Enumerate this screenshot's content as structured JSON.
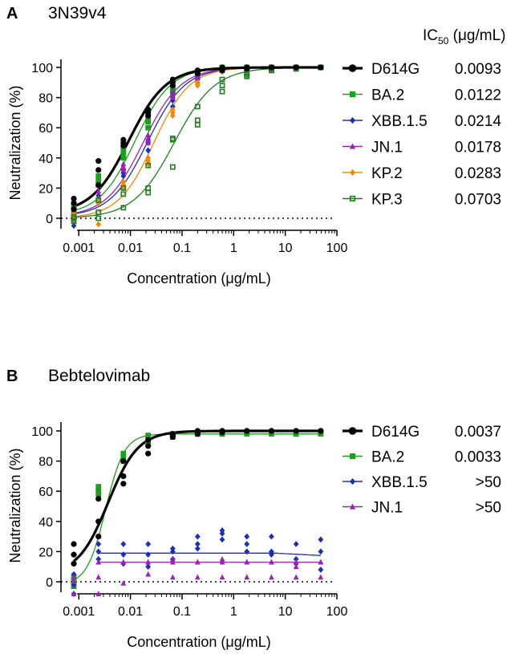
{
  "panels": [
    {
      "letter": "A",
      "title": "3N39v4",
      "ic50_header": "IC",
      "ic50_sub": "50",
      "ic50_unit": " (μg/mL)",
      "chart_data": {
        "type": "scatter",
        "title": "3N39v4",
        "xlabel": "Concentration (μg/mL)",
        "ylabel": "Neutralization (%)",
        "xscale": "log",
        "xlim": [
          0.0006,
          100
        ],
        "ylim": [
          -7,
          110
        ],
        "xticks": [
          0.001,
          0.01,
          0.1,
          1,
          10,
          100
        ],
        "xtick_labels": [
          "0.001",
          "0.01",
          "0.1",
          "1",
          "10",
          "100"
        ],
        "yticks": [
          0,
          20,
          40,
          60,
          80,
          100
        ],
        "ytick_labels": [
          "0",
          "20",
          "40",
          "60",
          "80",
          "100"
        ],
        "x": [
          0.0008,
          0.0024,
          0.0073,
          0.022,
          0.066,
          0.2,
          0.6,
          1.8,
          5.4,
          16.2,
          48.6
        ],
        "series": [
          {
            "name": "D614G",
            "ic50": "0.0093",
            "color": "#000000",
            "marker": "circle",
            "thick": true,
            "ec50": 0.0093,
            "hill": 1.2,
            "top": 100,
            "bottom": 3,
            "points": [
              [
                10,
                13,
                6
              ],
              [
                22,
                32,
                38
              ],
              [
                48,
                52,
                50
              ],
              [
                70,
                72,
                68
              ],
              [
                90,
                88,
                92
              ],
              [
                97,
                96,
                98
              ],
              [
                99,
                100,
                98
              ],
              [
                100,
                100,
                99
              ],
              [
                100,
                100,
                100
              ],
              [
                100,
                100,
                100
              ],
              [
                100,
                100,
                100
              ]
            ]
          },
          {
            "name": "BA.2",
            "ic50": "0.0122",
            "color": "#1aa01a",
            "marker": "square",
            "thick": false,
            "ec50": 0.0122,
            "hill": 1.25,
            "top": 100,
            "bottom": 2,
            "points": [
              [
                8,
                3,
                0
              ],
              [
                25,
                28,
                22
              ],
              [
                40,
                45,
                42
              ],
              [
                66,
                64,
                60
              ],
              [
                83,
                86,
                85
              ],
              [
                96,
                97,
                95
              ],
              [
                99,
                98,
                100
              ],
              [
                100,
                99,
                100
              ],
              [
                100,
                100,
                100
              ],
              [
                100,
                100,
                100
              ],
              [
                100,
                100,
                100
              ]
            ]
          },
          {
            "name": "XBB.1.5",
            "ic50": "0.0214",
            "color": "#1c2fb8",
            "marker": "diamond",
            "thick": false,
            "ec50": 0.0214,
            "hill": 1.2,
            "top": 100,
            "bottom": 1,
            "points": [
              [
                -5,
                2,
                5
              ],
              [
                12,
                13,
                15
              ],
              [
                28,
                32,
                30
              ],
              [
                45,
                50,
                52
              ],
              [
                78,
                74,
                80
              ],
              [
                92,
                93,
                90
              ],
              [
                98,
                99,
                97
              ],
              [
                100,
                99,
                100
              ],
              [
                100,
                100,
                100
              ],
              [
                100,
                100,
                100
              ],
              [
                100,
                100,
                100
              ]
            ]
          },
          {
            "name": "JN.1",
            "ic50": "0.0178",
            "color": "#9a22b5",
            "marker": "triangle",
            "thick": false,
            "ec50": 0.0178,
            "hill": 1.2,
            "top": 100,
            "bottom": 1,
            "points": [
              [
                0,
                -2,
                3
              ],
              [
                14,
                12,
                18
              ],
              [
                32,
                36,
                34
              ],
              [
                52,
                55,
                50
              ],
              [
                82,
                80,
                84
              ],
              [
                94,
                95,
                93
              ],
              [
                99,
                98,
                100
              ],
              [
                100,
                100,
                99
              ],
              [
                100,
                100,
                100
              ],
              [
                100,
                100,
                100
              ],
              [
                100,
                100,
                100
              ]
            ]
          },
          {
            "name": "KP.2",
            "ic50": "0.0283",
            "color": "#f0880a",
            "marker": "diamond",
            "thick": false,
            "ec50": 0.0283,
            "hill": 1.25,
            "top": 100,
            "bottom": 0,
            "points": [
              [
                -1,
                2,
                3
              ],
              [
                -4,
                12,
                10
              ],
              [
                24,
                22,
                20
              ],
              [
                38,
                40,
                36
              ],
              [
                70,
                68,
                72
              ],
              [
                88,
                90,
                89
              ],
              [
                98,
                97,
                99
              ],
              [
                100,
                99,
                100
              ],
              [
                100,
                100,
                100
              ],
              [
                100,
                100,
                100
              ],
              [
                100,
                100,
                100
              ]
            ]
          },
          {
            "name": "KP.3",
            "ic50": "0.0703",
            "color": "#1e7f1e",
            "marker": "square-open",
            "thick": false,
            "ec50": 0.0703,
            "hill": 1.1,
            "top": 100,
            "bottom": 0,
            "points": [
              [
                -2,
                0,
                1
              ],
              [
                4,
                0,
                12
              ],
              [
                7,
                16,
                20
              ],
              [
                17,
                20,
                35
              ],
              [
                34,
                53,
                52
              ],
              [
                74,
                65,
                62
              ],
              [
                84,
                88,
                92
              ],
              [
                95,
                96,
                94
              ],
              [
                98,
                99,
                98
              ],
              [
                99,
                100,
                100
              ],
              [
                100,
                100,
                100
              ]
            ]
          }
        ]
      }
    },
    {
      "letter": "B",
      "title": "Bebtelovimab",
      "chart_data": {
        "type": "scatter",
        "title": "Bebtelovimab",
        "xlabel": "Concentration (μg/mL)",
        "ylabel": "Neutralization (%)",
        "xscale": "log",
        "xlim": [
          0.0006,
          100
        ],
        "ylim": [
          -7,
          110
        ],
        "xticks": [
          0.001,
          0.01,
          0.1,
          1,
          10,
          100
        ],
        "xtick_labels": [
          "0.001",
          "0.01",
          "0.1",
          "1",
          "10",
          "100"
        ],
        "yticks": [
          0,
          20,
          40,
          60,
          80,
          100
        ],
        "ytick_labels": [
          "0",
          "20",
          "40",
          "60",
          "80",
          "100"
        ],
        "x": [
          0.0008,
          0.0024,
          0.0073,
          0.022,
          0.066,
          0.2,
          0.6,
          1.8,
          5.4,
          16.2,
          48.6
        ],
        "series": [
          {
            "name": "D614G",
            "ic50": "0.0037",
            "color": "#000000",
            "marker": "circle",
            "thick": true,
            "ec50": 0.0037,
            "hill": 1.5,
            "top": 100,
            "bottom": 5,
            "points": [
              [
                25,
                18,
                12
              ],
              [
                30,
                40,
                55
              ],
              [
                70,
                80,
                65
              ],
              [
                90,
                85,
                94
              ],
              [
                98,
                97,
                96
              ],
              [
                99,
                98,
                100
              ],
              [
                100,
                100,
                99
              ],
              [
                100,
                100,
                100
              ],
              [
                100,
                100,
                100
              ],
              [
                100,
                100,
                100
              ],
              [
                100,
                100,
                100
              ]
            ]
          },
          {
            "name": "BA.2",
            "ic50": "0.0033",
            "color": "#1aa01a",
            "marker": "square",
            "thick": false,
            "ec50": 0.0033,
            "hill": 2.4,
            "top": 98,
            "bottom": -2,
            "points": [
              [
                0,
                -3,
                3
              ],
              [
                60,
                63,
                58
              ],
              [
                80,
                85,
                83
              ],
              [
                95,
                97,
                92
              ],
              [
                98,
                97,
                96
              ],
              [
                99,
                98,
                98
              ],
              [
                98,
                99,
                98
              ],
              [
                99,
                98,
                99
              ],
              [
                99,
                98,
                99
              ],
              [
                99,
                98,
                98
              ],
              [
                98,
                99,
                99
              ]
            ]
          },
          {
            "name": "XBB.1.5",
            "ic50": ">50",
            "color": "#1c2fb8",
            "marker": "diamond",
            "thick": false,
            "ec50": null,
            "flat": 19,
            "drop": true,
            "points": [
              [
                -8,
                -2,
                5
              ],
              [
                25,
                20,
                15
              ],
              [
                12,
                25,
                18
              ],
              [
                25,
                18,
                10
              ],
              [
                22,
                20,
                15
              ],
              [
                30,
                25,
                22
              ],
              [
                32,
                34,
                28
              ],
              [
                30,
                25,
                20
              ],
              [
                30,
                20,
                18
              ],
              [
                25,
                12,
                15
              ],
              [
                28,
                20,
                8
              ]
            ]
          },
          {
            "name": "JN.1",
            "ic50": ">50",
            "color": "#9a22b5",
            "marker": "triangle",
            "thick": false,
            "ec50": null,
            "flat": 13,
            "drop": false,
            "points": [
              [
                3,
                -8,
                0
              ],
              [
                3,
                -8,
                13
              ],
              [
                13,
                -1,
                13
              ],
              [
                13,
                5,
                13
              ],
              [
                15,
                3,
                13
              ],
              [
                13,
                3,
                13
              ],
              [
                13,
                3,
                15
              ],
              [
                13,
                3,
                13
              ],
              [
                13,
                3,
                13
              ],
              [
                13,
                3,
                10
              ],
              [
                13,
                3,
                13
              ]
            ]
          }
        ]
      }
    }
  ]
}
